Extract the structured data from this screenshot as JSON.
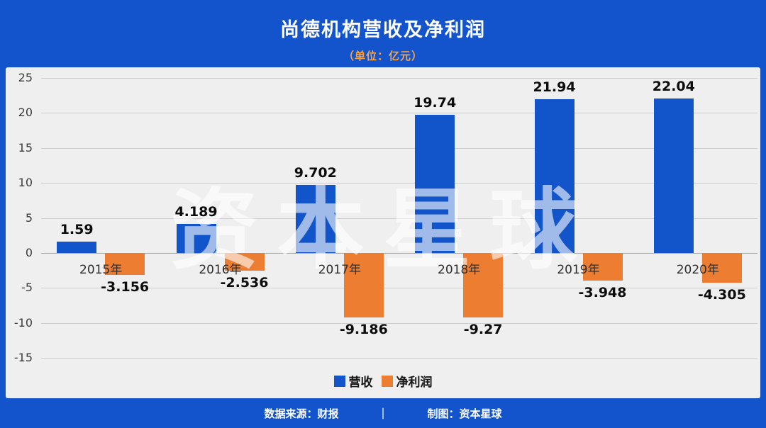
{
  "header": {
    "title": "尚德机构营收及净利润",
    "subtitle": "（单位：亿元）"
  },
  "watermark": "资本星球",
  "footer": {
    "source": "数据来源：财报",
    "divider": "｜",
    "credit": "制图：资本星球"
  },
  "colors": {
    "background": "#1353cb",
    "panel": "#efefef",
    "grid": "#cdcdcd",
    "revenue_blue": "#1254c9",
    "profit_orange": "#ed7d31",
    "subtitle_orange": "#ffa43b"
  },
  "chart_data": {
    "type": "bar",
    "categories": [
      "2015年",
      "2016年",
      "2017年",
      "2018年",
      "2019年",
      "2020年"
    ],
    "series": [
      {
        "name": "营收",
        "color": "#1254c9",
        "values": [
          1.59,
          4.189,
          9.702,
          19.74,
          21.94,
          22.04
        ]
      },
      {
        "name": "净利润",
        "color": "#ed7d31",
        "values": [
          -3.156,
          -2.536,
          -9.186,
          -9.27,
          -3.948,
          -4.305
        ]
      }
    ],
    "title": "尚德机构营收及净利润",
    "unit": "亿元",
    "xlabel": "",
    "ylabel": "",
    "ylim": [
      -15,
      25
    ],
    "ytick_step": 5,
    "grid": true,
    "legend_position": "bottom"
  }
}
